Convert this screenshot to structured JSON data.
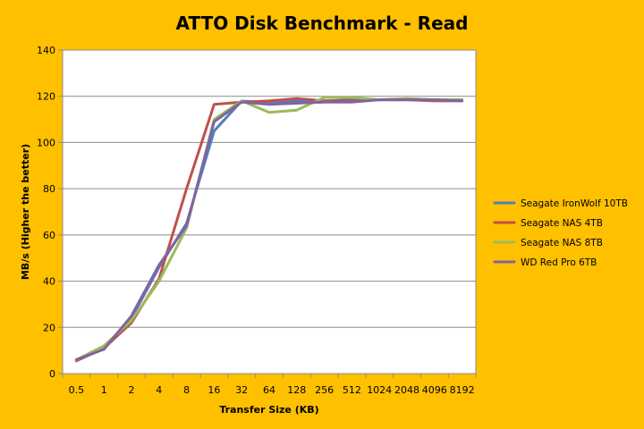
{
  "chart_data": {
    "type": "line",
    "title": "ATTO Disk Benchmark - Read",
    "xlabel": "Transfer Size (KB)",
    "ylabel": "MB/s (Higher the better)",
    "categories": [
      "0.5",
      "1",
      "2",
      "4",
      "8",
      "16",
      "32",
      "64",
      "128",
      "256",
      "512",
      "1024",
      "2048",
      "4096",
      "8192"
    ],
    "ylim": [
      0,
      140
    ],
    "yticks": [
      0,
      20,
      40,
      60,
      80,
      100,
      120,
      140
    ],
    "grid": "horizontal",
    "legend_position": "right",
    "series": [
      {
        "name": "Seagate IronWolf 10TB",
        "color": "#4F81BD",
        "values": [
          6,
          11,
          24,
          46,
          65,
          105,
          118,
          117,
          118,
          118,
          118.5,
          118.5,
          118.5,
          118.5,
          118.5
        ]
      },
      {
        "name": "Seagate NAS 4TB",
        "color": "#C0504D",
        "values": [
          5.5,
          11,
          22,
          41,
          80,
          116.5,
          117.5,
          118,
          119,
          118,
          118,
          118.5,
          118.5,
          118,
          118
        ]
      },
      {
        "name": "Seagate NAS 8TB",
        "color": "#9BBB59",
        "values": [
          6,
          12,
          23,
          40,
          63,
          110,
          118,
          113,
          114,
          119.5,
          119.5,
          118.5,
          119,
          118.5,
          118.5
        ]
      },
      {
        "name": "WD Red Pro 6TB",
        "color": "#8064A2",
        "values": [
          6,
          10.5,
          25,
          47,
          64,
          109,
          117.5,
          116.5,
          117,
          117.5,
          117.5,
          118.5,
          118.5,
          118.5,
          118
        ]
      }
    ]
  }
}
